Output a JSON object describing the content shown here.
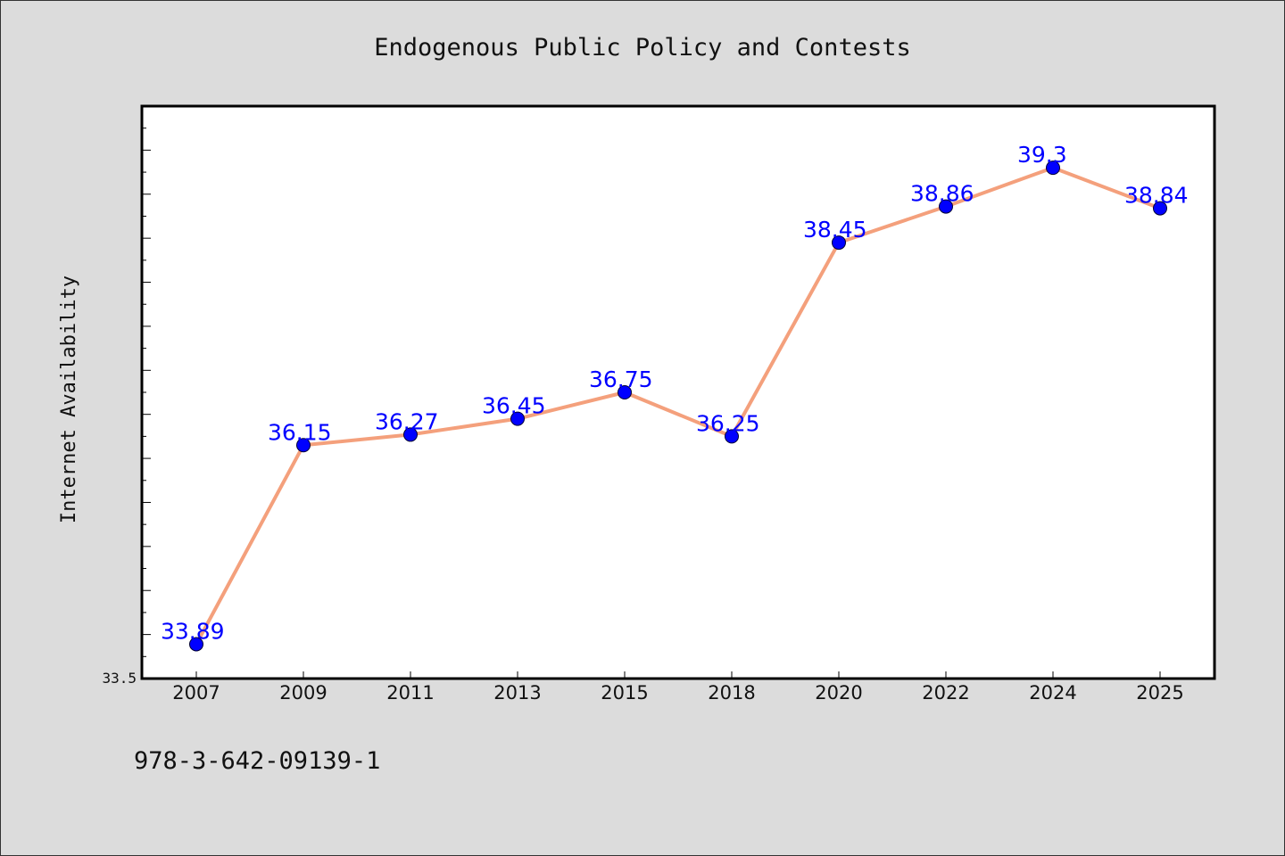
{
  "chart_data": {
    "type": "line",
    "title": "Endogenous Public Policy and Contests",
    "xlabel": "",
    "ylabel": "Internet Availability",
    "categories": [
      "2007",
      "2009",
      "2011",
      "2013",
      "2015",
      "2018",
      "2020",
      "2022",
      "2024",
      "2025"
    ],
    "series": [
      {
        "values": [
          33.89,
          36.15,
          36.27,
          36.45,
          36.75,
          36.25,
          38.45,
          38.86,
          39.3,
          38.84
        ],
        "data_labels": [
          "33.89",
          "36.15",
          "36.27",
          "36.45",
          "36.75",
          "36.25",
          "38.45",
          "38.86",
          "39.3",
          "38.84"
        ]
      }
    ],
    "ylim": [
      33.5,
      40.0
    ],
    "ytick_labels": [
      "33.5"
    ],
    "grid": false,
    "colors": {
      "line": "#f4a07c",
      "marker": "#0000ff",
      "data_label": "#0000ff",
      "background": "#dcdcdc",
      "plot_area": "#ffffff"
    }
  },
  "footer_text": "978-3-642-09139-1"
}
